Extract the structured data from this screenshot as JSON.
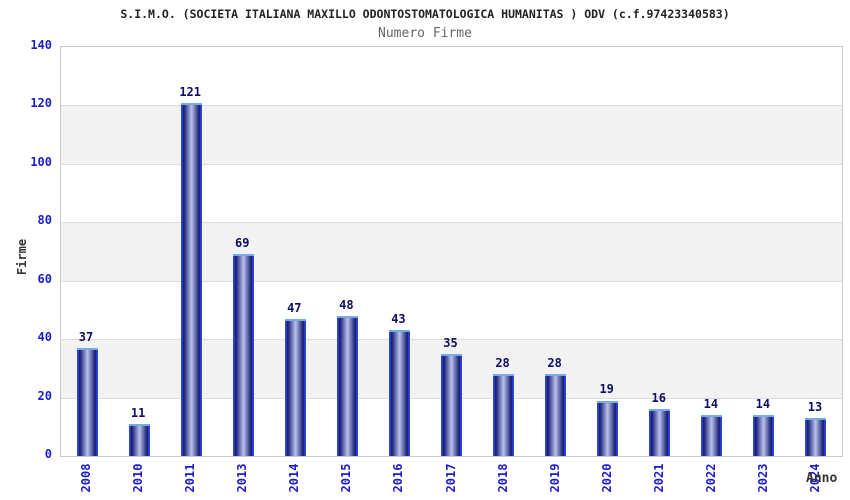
{
  "header": {
    "title": "S.I.M.O. (SOCIETA ITALIANA MAXILLO ODONTOSTOMATOLOGICA HUMANITAS ) ODV (c.f.97423340583)",
    "subtitle": "Numero Firme"
  },
  "chart_data": {
    "type": "bar",
    "title": "S.I.M.O. (SOCIETA ITALIANA MAXILLO ODONTOSTOMATOLOGICA HUMANITAS ) ODV (c.f.97423340583)",
    "subtitle": "Numero Firme",
    "xlabel": "Anno",
    "ylabel": "Firme",
    "categories": [
      "2008",
      "2010",
      "2011",
      "2013",
      "2014",
      "2015",
      "2016",
      "2017",
      "2018",
      "2019",
      "2020",
      "2021",
      "2022",
      "2023",
      "2024"
    ],
    "values": [
      37,
      11,
      121,
      69,
      47,
      48,
      43,
      35,
      28,
      28,
      19,
      16,
      14,
      14,
      13
    ],
    "ylim": [
      0,
      140
    ],
    "yticks": [
      0,
      20,
      40,
      60,
      80,
      100,
      120,
      140
    ],
    "grid": "horizontal-alternating-bands",
    "legend": "none",
    "bar_labels_shown": true,
    "x_tick_rotation_degrees": 90
  },
  "colors": {
    "title_text": "#222222",
    "subtitle_text": "#666666",
    "axis_tick_text": "#1c1ccd",
    "bar_value_text": "#0d0d66",
    "axis_title_text": "#333333",
    "plot_border": "#c9c9c9",
    "gridline": "#dddddd",
    "band_gray": "#f2f2f2",
    "band_white": "#ffffff",
    "bar_edge": "#2d47d2",
    "bar_dark": "#171c74",
    "bar_center_light": "#b9c2ea",
    "bar_top_highlight": "#74abe8"
  }
}
